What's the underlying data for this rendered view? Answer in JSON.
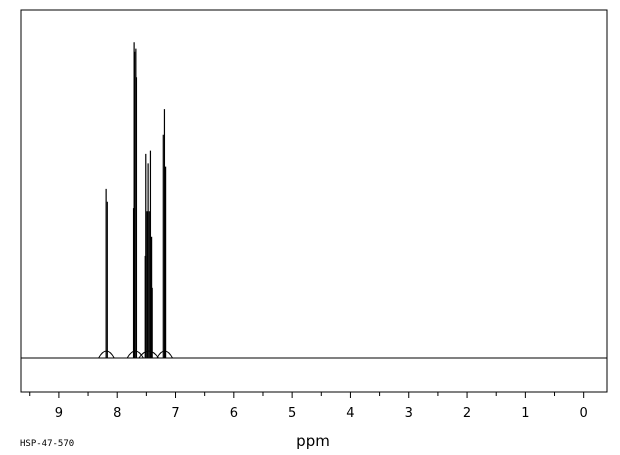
{
  "chart_data": {
    "type": "line",
    "xlabel": "ppm",
    "x_reversed": true,
    "xlim": [
      9.65,
      -0.4
    ],
    "ylim": [
      0,
      1
    ],
    "baseline": 0.0,
    "grid": false,
    "xticks": [
      9,
      8,
      7,
      6,
      5,
      4,
      3,
      2,
      1,
      0
    ],
    "xtick_labels": [
      "9",
      "8",
      "7",
      "6",
      "5",
      "4",
      "3",
      "2",
      "1",
      "0"
    ],
    "sample_code": "HSP-47-570",
    "line_color": "#000000",
    "peaks": [
      {
        "ppm": 8.19,
        "height": 0.53
      },
      {
        "ppm": 8.17,
        "height": 0.49
      },
      {
        "ppm": 7.72,
        "height": 0.47
      },
      {
        "ppm": 7.71,
        "height": 0.99
      },
      {
        "ppm": 7.7,
        "height": 0.96
      },
      {
        "ppm": 7.68,
        "height": 0.97
      },
      {
        "ppm": 7.67,
        "height": 0.88
      },
      {
        "ppm": 7.52,
        "height": 0.32
      },
      {
        "ppm": 7.51,
        "height": 0.64
      },
      {
        "ppm": 7.49,
        "height": 0.46
      },
      {
        "ppm": 7.47,
        "height": 0.61
      },
      {
        "ppm": 7.45,
        "height": 0.46
      },
      {
        "ppm": 7.43,
        "height": 0.65
      },
      {
        "ppm": 7.41,
        "height": 0.38
      },
      {
        "ppm": 7.4,
        "height": 0.22
      },
      {
        "ppm": 7.21,
        "height": 0.7
      },
      {
        "ppm": 7.19,
        "height": 0.78
      },
      {
        "ppm": 7.17,
        "height": 0.6
      }
    ]
  }
}
